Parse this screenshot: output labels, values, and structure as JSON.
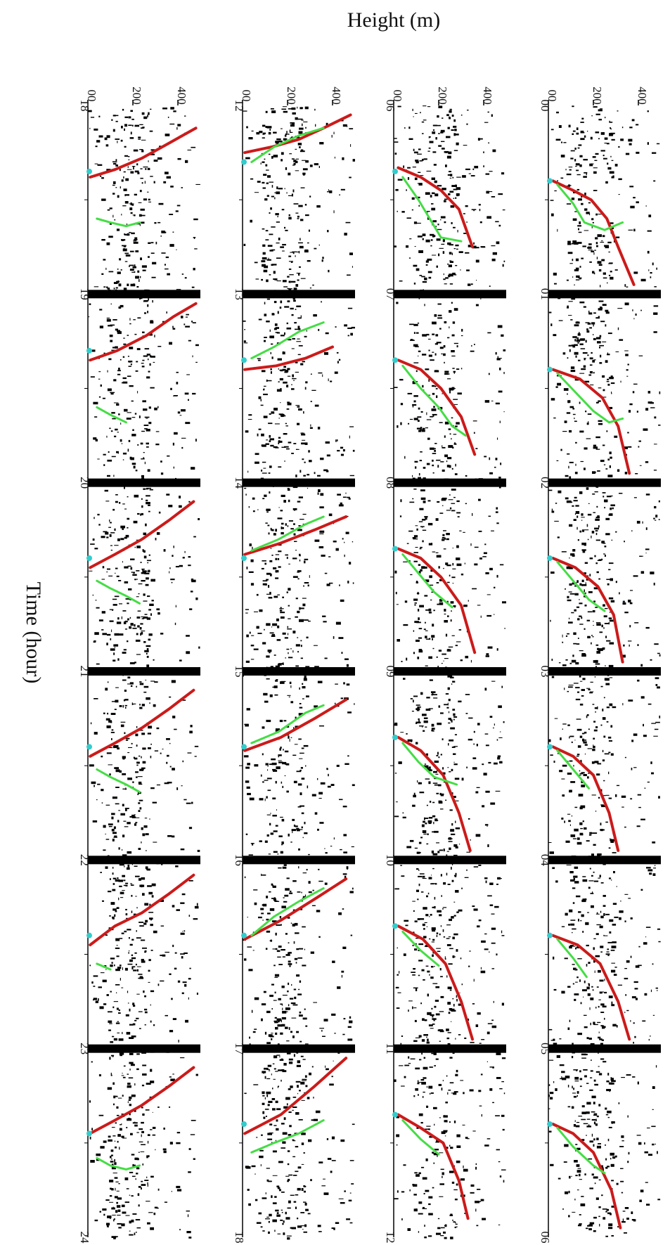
{
  "chart_data": {
    "type": "scatter",
    "xlabel": "Time (hour)",
    "ylabel": "Height (m)",
    "ylim": [
      0,
      500
    ],
    "y_ticks": [
      0,
      200,
      400
    ],
    "y_tick_labels": [
      "00",
      "200",
      "400"
    ],
    "series_colors": {
      "echo": "#000000",
      "red_line": "#cc1a1a",
      "green_line": "#44dd44",
      "marker": "#33cccc"
    },
    "panels": [
      {
        "id": "p0",
        "time_labels": [
          "00",
          "01",
          "02",
          "03",
          "04",
          "05",
          "06"
        ],
        "sunrise_like_markers": [
          0.4,
          1.4,
          2.4,
          3.4,
          4.4,
          5.4
        ],
        "red_line": [
          {
            "x": 0.4,
            "y": 20
          },
          {
            "x": 0.45,
            "y": 110
          },
          {
            "x": 0.5,
            "y": 190
          },
          {
            "x": 0.6,
            "y": 260
          },
          {
            "x": 0.75,
            "y": 310
          },
          {
            "x": 0.95,
            "y": 380
          },
          {
            "x": 1.4,
            "y": 20
          },
          {
            "x": 1.45,
            "y": 140
          },
          {
            "x": 1.55,
            "y": 240
          },
          {
            "x": 1.7,
            "y": 310
          },
          {
            "x": 1.95,
            "y": 360
          },
          {
            "x": 2.4,
            "y": 20
          },
          {
            "x": 2.45,
            "y": 120
          },
          {
            "x": 2.55,
            "y": 220
          },
          {
            "x": 2.7,
            "y": 290
          },
          {
            "x": 2.95,
            "y": 330
          },
          {
            "x": 3.4,
            "y": 20
          },
          {
            "x": 3.45,
            "y": 110
          },
          {
            "x": 3.55,
            "y": 200
          },
          {
            "x": 3.75,
            "y": 270
          },
          {
            "x": 3.95,
            "y": 310
          },
          {
            "x": 4.4,
            "y": 20
          },
          {
            "x": 4.45,
            "y": 130
          },
          {
            "x": 4.55,
            "y": 230
          },
          {
            "x": 4.75,
            "y": 310
          },
          {
            "x": 4.95,
            "y": 360
          },
          {
            "x": 5.4,
            "y": 20
          },
          {
            "x": 5.45,
            "y": 110
          },
          {
            "x": 5.55,
            "y": 200
          },
          {
            "x": 5.75,
            "y": 280
          },
          {
            "x": 5.95,
            "y": 320
          }
        ],
        "green_line": [
          {
            "x": 0.42,
            "y": 40
          },
          {
            "x": 0.52,
            "y": 110
          },
          {
            "x": 0.62,
            "y": 160
          },
          {
            "x": 0.66,
            "y": 250
          },
          {
            "x": 0.62,
            "y": 330
          },
          {
            "x": 1.42,
            "y": 40
          },
          {
            "x": 1.52,
            "y": 120
          },
          {
            "x": 1.62,
            "y": 200
          },
          {
            "x": 1.68,
            "y": 270
          },
          {
            "x": 1.66,
            "y": 330
          },
          {
            "x": 2.42,
            "y": 40
          },
          {
            "x": 2.52,
            "y": 110
          },
          {
            "x": 2.62,
            "y": 180
          },
          {
            "x": 2.68,
            "y": 250
          },
          {
            "x": 3.42,
            "y": 40
          },
          {
            "x": 3.52,
            "y": 110
          },
          {
            "x": 3.62,
            "y": 180
          },
          {
            "x": 4.42,
            "y": 40
          },
          {
            "x": 4.52,
            "y": 110
          },
          {
            "x": 4.62,
            "y": 170
          },
          {
            "x": 5.42,
            "y": 40
          },
          {
            "x": 5.52,
            "y": 110
          },
          {
            "x": 5.62,
            "y": 200
          },
          {
            "x": 5.66,
            "y": 250
          }
        ]
      },
      {
        "id": "p1",
        "time_labels": [
          "06",
          "07",
          "08",
          "09",
          "10",
          "11",
          "12"
        ],
        "sunrise_like_markers": [
          0.35,
          1.35,
          2.35,
          3.35,
          4.35,
          5.35
        ],
        "red_line": [
          {
            "x": 0.33,
            "y": 20
          },
          {
            "x": 0.38,
            "y": 120
          },
          {
            "x": 0.45,
            "y": 210
          },
          {
            "x": 0.55,
            "y": 290
          },
          {
            "x": 0.75,
            "y": 350
          },
          {
            "x": 1.35,
            "y": 20
          },
          {
            "x": 1.4,
            "y": 120
          },
          {
            "x": 1.5,
            "y": 210
          },
          {
            "x": 1.65,
            "y": 300
          },
          {
            "x": 1.85,
            "y": 360
          },
          {
            "x": 2.35,
            "y": 20
          },
          {
            "x": 2.4,
            "y": 120
          },
          {
            "x": 2.5,
            "y": 210
          },
          {
            "x": 2.65,
            "y": 300
          },
          {
            "x": 2.9,
            "y": 360
          },
          {
            "x": 3.35,
            "y": 20
          },
          {
            "x": 3.42,
            "y": 120
          },
          {
            "x": 3.55,
            "y": 220
          },
          {
            "x": 3.75,
            "y": 290
          },
          {
            "x": 3.95,
            "y": 340
          },
          {
            "x": 4.35,
            "y": 20
          },
          {
            "x": 4.42,
            "y": 130
          },
          {
            "x": 4.55,
            "y": 230
          },
          {
            "x": 4.75,
            "y": 300
          },
          {
            "x": 4.95,
            "y": 350
          },
          {
            "x": 5.35,
            "y": 20
          },
          {
            "x": 5.42,
            "y": 120
          },
          {
            "x": 5.5,
            "y": 220
          },
          {
            "x": 5.7,
            "y": 290
          },
          {
            "x": 5.9,
            "y": 330
          }
        ],
        "green_line": [
          {
            "x": 0.38,
            "y": 40
          },
          {
            "x": 0.5,
            "y": 110
          },
          {
            "x": 0.6,
            "y": 160
          },
          {
            "x": 0.7,
            "y": 210
          },
          {
            "x": 0.72,
            "y": 300
          },
          {
            "x": 1.38,
            "y": 40
          },
          {
            "x": 1.5,
            "y": 120
          },
          {
            "x": 1.6,
            "y": 200
          },
          {
            "x": 1.7,
            "y": 260
          },
          {
            "x": 1.75,
            "y": 320
          },
          {
            "x": 2.38,
            "y": 40
          },
          {
            "x": 2.48,
            "y": 110
          },
          {
            "x": 2.58,
            "y": 180
          },
          {
            "x": 2.66,
            "y": 260
          },
          {
            "x": 3.38,
            "y": 40
          },
          {
            "x": 3.48,
            "y": 110
          },
          {
            "x": 3.56,
            "y": 180
          },
          {
            "x": 3.6,
            "y": 280
          },
          {
            "x": 4.38,
            "y": 40
          },
          {
            "x": 4.48,
            "y": 120
          },
          {
            "x": 4.56,
            "y": 200
          },
          {
            "x": 5.38,
            "y": 40
          },
          {
            "x": 5.48,
            "y": 120
          },
          {
            "x": 5.56,
            "y": 200
          }
        ]
      },
      {
        "id": "p2",
        "time_labels": [
          "12",
          "13",
          "14",
          "15",
          "16",
          "17",
          "18"
        ],
        "sunrise_like_markers": [
          0.3,
          1.35,
          2.4,
          3.4,
          4.4,
          5.4
        ],
        "red_line": [
          {
            "x": 0.25,
            "y": 10
          },
          {
            "x": 0.22,
            "y": 130
          },
          {
            "x": 0.18,
            "y": 250
          },
          {
            "x": 0.12,
            "y": 360
          },
          {
            "x": 0.05,
            "y": 480
          },
          {
            "x": 1.4,
            "y": 10
          },
          {
            "x": 1.38,
            "y": 150
          },
          {
            "x": 1.34,
            "y": 280
          },
          {
            "x": 1.28,
            "y": 400
          },
          {
            "x": 2.38,
            "y": 10
          },
          {
            "x": 2.32,
            "y": 170
          },
          {
            "x": 2.25,
            "y": 320
          },
          {
            "x": 2.18,
            "y": 460
          },
          {
            "x": 3.42,
            "y": 10
          },
          {
            "x": 3.35,
            "y": 170
          },
          {
            "x": 3.25,
            "y": 320
          },
          {
            "x": 3.15,
            "y": 460
          },
          {
            "x": 4.42,
            "y": 10
          },
          {
            "x": 4.32,
            "y": 170
          },
          {
            "x": 4.2,
            "y": 330
          },
          {
            "x": 4.1,
            "y": 460
          },
          {
            "x": 5.45,
            "y": 10
          },
          {
            "x": 5.35,
            "y": 170
          },
          {
            "x": 5.2,
            "y": 320
          },
          {
            "x": 5.05,
            "y": 460
          }
        ],
        "green_line": [
          {
            "x": 0.3,
            "y": 40
          },
          {
            "x": 0.22,
            "y": 140
          },
          {
            "x": 0.16,
            "y": 250
          },
          {
            "x": 0.12,
            "y": 360
          },
          {
            "x": 1.34,
            "y": 40
          },
          {
            "x": 1.28,
            "y": 140
          },
          {
            "x": 1.2,
            "y": 250
          },
          {
            "x": 1.15,
            "y": 360
          },
          {
            "x": 2.36,
            "y": 40
          },
          {
            "x": 2.3,
            "y": 160
          },
          {
            "x": 2.22,
            "y": 280
          },
          {
            "x": 2.18,
            "y": 360
          },
          {
            "x": 3.38,
            "y": 40
          },
          {
            "x": 3.32,
            "y": 160
          },
          {
            "x": 3.22,
            "y": 280
          },
          {
            "x": 3.18,
            "y": 360
          },
          {
            "x": 4.4,
            "y": 40
          },
          {
            "x": 4.3,
            "y": 140
          },
          {
            "x": 4.22,
            "y": 250
          },
          {
            "x": 4.15,
            "y": 360
          },
          {
            "x": 5.55,
            "y": 40
          },
          {
            "x": 5.5,
            "y": 140
          },
          {
            "x": 5.45,
            "y": 250
          },
          {
            "x": 5.38,
            "y": 360
          }
        ]
      },
      {
        "id": "p3",
        "time_labels": [
          "18",
          "19",
          "20",
          "21",
          "22",
          "23",
          "24"
        ],
        "sunrise_like_markers": [
          0.35,
          1.3,
          2.4,
          3.4,
          4.4,
          5.45
        ],
        "red_line": [
          {
            "x": 0.38,
            "y": 10
          },
          {
            "x": 0.34,
            "y": 120
          },
          {
            "x": 0.28,
            "y": 240
          },
          {
            "x": 0.2,
            "y": 360
          },
          {
            "x": 0.12,
            "y": 480
          },
          {
            "x": 1.35,
            "y": 10
          },
          {
            "x": 1.3,
            "y": 130
          },
          {
            "x": 1.22,
            "y": 260
          },
          {
            "x": 1.12,
            "y": 380
          },
          {
            "x": 1.05,
            "y": 480
          },
          {
            "x": 2.45,
            "y": 10
          },
          {
            "x": 2.38,
            "y": 120
          },
          {
            "x": 2.3,
            "y": 240
          },
          {
            "x": 2.2,
            "y": 360
          },
          {
            "x": 2.1,
            "y": 470
          },
          {
            "x": 3.45,
            "y": 10
          },
          {
            "x": 3.38,
            "y": 120
          },
          {
            "x": 3.3,
            "y": 240
          },
          {
            "x": 3.2,
            "y": 360
          },
          {
            "x": 3.1,
            "y": 470
          },
          {
            "x": 4.45,
            "y": 10
          },
          {
            "x": 4.35,
            "y": 120
          },
          {
            "x": 4.28,
            "y": 240
          },
          {
            "x": 4.18,
            "y": 360
          },
          {
            "x": 4.08,
            "y": 470
          },
          {
            "x": 5.45,
            "y": 10
          },
          {
            "x": 5.38,
            "y": 120
          },
          {
            "x": 5.3,
            "y": 240
          },
          {
            "x": 5.2,
            "y": 360
          },
          {
            "x": 5.1,
            "y": 470
          }
        ],
        "green_line": [
          {
            "x": 0.6,
            "y": 40
          },
          {
            "x": 0.62,
            "y": 100
          },
          {
            "x": 0.64,
            "y": 170
          },
          {
            "x": 0.62,
            "y": 230
          },
          {
            "x": 1.6,
            "y": 40
          },
          {
            "x": 1.64,
            "y": 100
          },
          {
            "x": 1.68,
            "y": 170
          },
          {
            "x": 2.52,
            "y": 40
          },
          {
            "x": 2.56,
            "y": 100
          },
          {
            "x": 2.6,
            "y": 170
          },
          {
            "x": 2.64,
            "y": 230
          },
          {
            "x": 3.52,
            "y": 40
          },
          {
            "x": 3.56,
            "y": 100
          },
          {
            "x": 3.6,
            "y": 170
          },
          {
            "x": 3.64,
            "y": 230
          },
          {
            "x": 4.55,
            "y": 40
          },
          {
            "x": 4.58,
            "y": 100
          },
          {
            "x": 5.58,
            "y": 40
          },
          {
            "x": 5.62,
            "y": 100
          },
          {
            "x": 5.64,
            "y": 170
          },
          {
            "x": 5.62,
            "y": 230
          }
        ]
      }
    ]
  }
}
